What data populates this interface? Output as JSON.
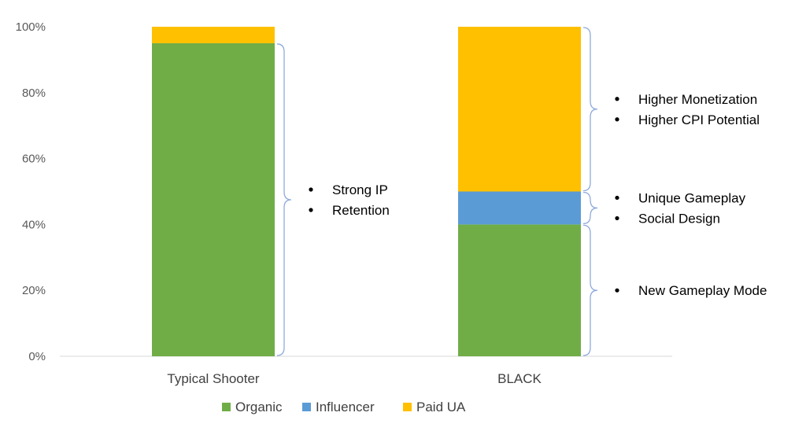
{
  "chart_data": {
    "type": "bar",
    "stacked": true,
    "categories": [
      "Typical Shooter",
      "BLACK"
    ],
    "series": [
      {
        "name": "Organic",
        "color": "#70AD47",
        "values": [
          95,
          40
        ]
      },
      {
        "name": "Influencer",
        "color": "#5B9BD5",
        "values": [
          0,
          10
        ]
      },
      {
        "name": "Paid UA",
        "color": "#FFC000",
        "values": [
          5,
          50
        ]
      }
    ],
    "ylim": [
      0,
      100
    ],
    "yticks": [
      0,
      20,
      40,
      60,
      80,
      100
    ],
    "ytick_labels": [
      "0%",
      "20%",
      "40%",
      "60%",
      "80%",
      "100%"
    ],
    "grid": false,
    "legend_position": "bottom",
    "annotations": [
      {
        "category": 0,
        "from": 0,
        "to": 95,
        "bullets": [
          "Strong IP",
          "Retention"
        ]
      },
      {
        "category": 1,
        "from": 50,
        "to": 100,
        "bullets": [
          "Higher Monetization",
          "Higher CPI Potential"
        ]
      },
      {
        "category": 1,
        "from": 40,
        "to": 50,
        "bullets": [
          "Unique Gameplay",
          "Social Design"
        ]
      },
      {
        "category": 1,
        "from": 0,
        "to": 40,
        "bullets": [
          "New Gameplay Mode"
        ]
      }
    ],
    "bracket_color": "#8FAADC"
  }
}
